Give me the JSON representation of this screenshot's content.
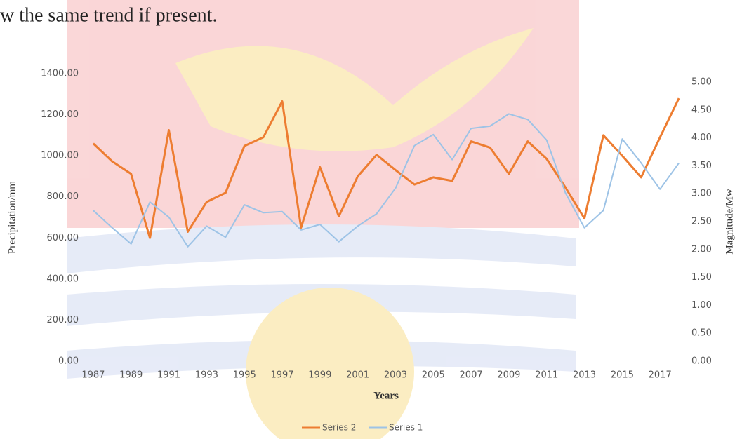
{
  "header_text": "w the same trend if present.",
  "chart_data": {
    "type": "line",
    "x_label": "Years",
    "y_label": "Precipitation/mm",
    "y2_label": "Magnitude/Mw",
    "x": [
      1987,
      1988,
      1989,
      1990,
      1991,
      1992,
      1993,
      1994,
      1995,
      1996,
      1997,
      1998,
      1999,
      2000,
      2001,
      2002,
      2003,
      2004,
      2005,
      2006,
      2007,
      2008,
      2009,
      2010,
      2011,
      2012,
      2013,
      2014,
      2015,
      2016,
      2017,
      2018
    ],
    "xlim": [
      1986,
      2019
    ],
    "xticks": [
      1987,
      1989,
      1991,
      1993,
      1995,
      1997,
      1999,
      2001,
      2003,
      2005,
      2007,
      2009,
      2011,
      2013,
      2015,
      2017
    ],
    "ylim": [
      0,
      1400
    ],
    "yticks": [
      {
        "value": 0,
        "label": "0.00"
      },
      {
        "value": 200,
        "label": "200.00"
      },
      {
        "value": 400,
        "label": "400.00"
      },
      {
        "value": 600,
        "label": "600.00"
      },
      {
        "value": 800,
        "label": "800.00"
      },
      {
        "value": 1000,
        "label": "1000.00"
      },
      {
        "value": 1200,
        "label": "1200.00"
      },
      {
        "value": 1400,
        "label": "1400.00"
      }
    ],
    "y2lim": [
      0,
      5
    ],
    "y2ticks": [
      {
        "value": 0,
        "label": "0.00"
      },
      {
        "value": 0.5,
        "label": "0.50"
      },
      {
        "value": 1,
        "label": "1.00"
      },
      {
        "value": 1.5,
        "label": "1.50"
      },
      {
        "value": 2,
        "label": "2.00"
      },
      {
        "value": 2.5,
        "label": "2.50"
      },
      {
        "value": 3,
        "label": "3.00"
      },
      {
        "value": 3.5,
        "label": "3.50"
      },
      {
        "value": 4,
        "label": "4.00"
      },
      {
        "value": 4.5,
        "label": "4.50"
      },
      {
        "value": 5,
        "label": "5.00"
      }
    ],
    "grid": false,
    "series": [
      {
        "name": "Series 2",
        "color": "#ed7d31",
        "values": [
          1060,
          973,
          912,
          600,
          1125,
          630,
          775,
          820,
          1048,
          1090,
          1265,
          650,
          945,
          705,
          900,
          1005,
          930,
          860,
          895,
          878,
          1070,
          1040,
          912,
          1070,
          985,
          845,
          695,
          1100,
          1000,
          895,
          1090,
          1280
        ]
      },
      {
        "name": "Series 1",
        "color": "#9dc3e6",
        "axis": "y2",
        "values": [
          2.7,
          2.39,
          2.1,
          2.85,
          2.58,
          2.05,
          2.42,
          2.22,
          2.8,
          2.66,
          2.68,
          2.35,
          2.45,
          2.14,
          2.42,
          2.64,
          3.1,
          3.86,
          4.06,
          3.61,
          4.17,
          4.21,
          4.43,
          4.33,
          3.96,
          3.01,
          2.39,
          2.7,
          3.98,
          3.55,
          3.08,
          3.55
        ]
      }
    ]
  }
}
